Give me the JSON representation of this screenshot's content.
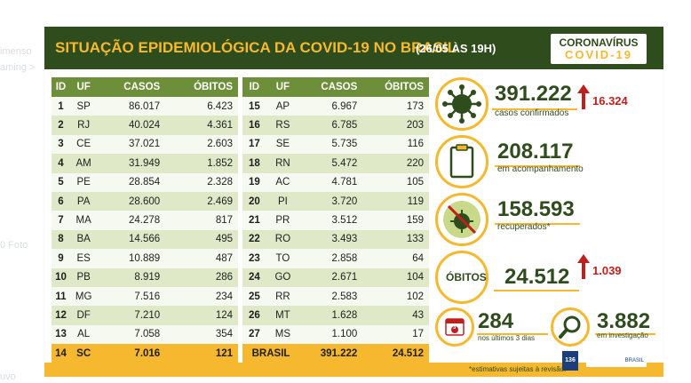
{
  "background_labels": {
    "left_fragments": [
      "imenso",
      "aming >",
      "",
      "0 Foto",
      "",
      "uvo"
    ]
  },
  "header": {
    "title": "SITUAÇÃO EPIDEMIOLÓGICA DA COVID-19 NO BRASIL",
    "date": "(26/05 ÀS 19H)",
    "logo_top": "CORONAVÍRUS",
    "logo_bottom": "COVID-19"
  },
  "table": {
    "columns": [
      "ID",
      "UF",
      "CASOS",
      "ÓBITOS"
    ],
    "left_rows": [
      {
        "id": "1",
        "uf": "SP",
        "casos": "86.017",
        "obitos": "6.423"
      },
      {
        "id": "2",
        "uf": "RJ",
        "casos": "40.024",
        "obitos": "4.361"
      },
      {
        "id": "3",
        "uf": "CE",
        "casos": "37.021",
        "obitos": "2.603"
      },
      {
        "id": "4",
        "uf": "AM",
        "casos": "31.949",
        "obitos": "1.852"
      },
      {
        "id": "5",
        "uf": "PE",
        "casos": "28.854",
        "obitos": "2.328"
      },
      {
        "id": "6",
        "uf": "PA",
        "casos": "28.600",
        "obitos": "2.469"
      },
      {
        "id": "7",
        "uf": "MA",
        "casos": "24.278",
        "obitos": "817"
      },
      {
        "id": "8",
        "uf": "BA",
        "casos": "14.566",
        "obitos": "495"
      },
      {
        "id": "9",
        "uf": "ES",
        "casos": "10.889",
        "obitos": "487"
      },
      {
        "id": "10",
        "uf": "PB",
        "casos": "8.919",
        "obitos": "286"
      },
      {
        "id": "11",
        "uf": "MG",
        "casos": "7.516",
        "obitos": "234"
      },
      {
        "id": "12",
        "uf": "DF",
        "casos": "7.210",
        "obitos": "124"
      },
      {
        "id": "13",
        "uf": "AL",
        "casos": "7.058",
        "obitos": "354"
      },
      {
        "id": "14",
        "uf": "SC",
        "casos": "7.016",
        "obitos": "121"
      }
    ],
    "right_rows": [
      {
        "id": "15",
        "uf": "AP",
        "casos": "6.967",
        "obitos": "173"
      },
      {
        "id": "16",
        "uf": "RS",
        "casos": "6.785",
        "obitos": "203"
      },
      {
        "id": "17",
        "uf": "SE",
        "casos": "5.735",
        "obitos": "116"
      },
      {
        "id": "18",
        "uf": "RN",
        "casos": "5.472",
        "obitos": "220"
      },
      {
        "id": "19",
        "uf": "AC",
        "casos": "4.781",
        "obitos": "105"
      },
      {
        "id": "20",
        "uf": "PI",
        "casos": "3.720",
        "obitos": "119"
      },
      {
        "id": "21",
        "uf": "PR",
        "casos": "3.512",
        "obitos": "159"
      },
      {
        "id": "22",
        "uf": "RO",
        "casos": "3.493",
        "obitos": "133"
      },
      {
        "id": "23",
        "uf": "TO",
        "casos": "2.858",
        "obitos": "64"
      },
      {
        "id": "24",
        "uf": "GO",
        "casos": "2.671",
        "obitos": "104"
      },
      {
        "id": "25",
        "uf": "RR",
        "casos": "2.583",
        "obitos": "102"
      },
      {
        "id": "26",
        "uf": "MT",
        "casos": "1.628",
        "obitos": "43"
      },
      {
        "id": "27",
        "uf": "MS",
        "casos": "1.100",
        "obitos": "17"
      }
    ],
    "total": {
      "label": "BRASIL",
      "casos": "391.222",
      "obitos": "24.512"
    }
  },
  "stats": {
    "confirmados": {
      "value": "391.222",
      "label": "casos confirmados",
      "delta": "16.324"
    },
    "acompanhamento": {
      "value": "208.117",
      "label": "em acompanhamento"
    },
    "recuperados": {
      "value": "158.593",
      "label": "recuperados*"
    },
    "obitos": {
      "word": "ÓBITOS",
      "value": "24.512",
      "delta": "1.039"
    },
    "ultimos3": {
      "value": "284",
      "label": "nos últimos 3 dias",
      "calendar_number": "3"
    },
    "investigacao": {
      "value": "3.882",
      "label": "em investigação"
    }
  },
  "footer": {
    "note": "*estimativas sujeitas à revisão.",
    "disque": "136",
    "gov": "BRASIL"
  },
  "colors": {
    "dark_green": "#2f4c1c",
    "yellow": "#f5b82e",
    "header_row": "#6e8f3a",
    "row_light": "#f6f9f0",
    "row_alt": "#dfe9c7",
    "delta_red": "#c0201d"
  },
  "icons": {
    "confirmados": "virus-icon",
    "acompanhamento": "clipboard-icon",
    "recuperados": "no-virus-icon",
    "ultimos3": "calendar-icon",
    "investigacao": "magnifier-icon",
    "aumento": "arrow-up-icon"
  }
}
